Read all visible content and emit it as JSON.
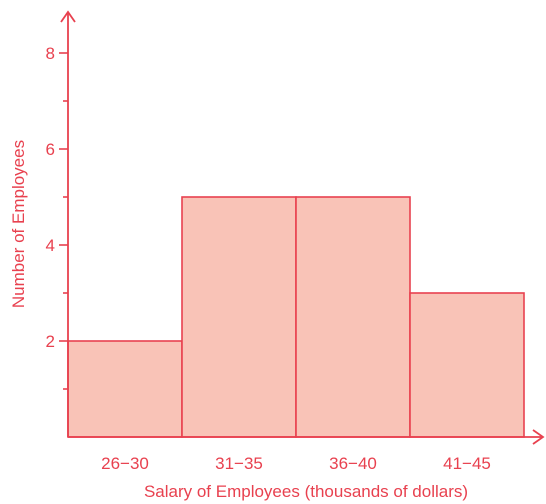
{
  "chart_data": {
    "type": "bar",
    "title": "",
    "xlabel": "Salary of Employees (thousands of dollars)",
    "ylabel": "Number of Employees",
    "categories": [
      "26−30",
      "31−35",
      "36−40",
      "41−45"
    ],
    "values": [
      2,
      5,
      5,
      3
    ],
    "ylim": [
      0,
      9
    ],
    "yticks_labeled": [
      2,
      4,
      6,
      8
    ],
    "yticks_minor": [
      1,
      3,
      5,
      7
    ],
    "grid": false,
    "legend": "none",
    "colors": {
      "bar_fill": "#f9c3b7",
      "stroke": "#e8414f",
      "text": "#e8414f"
    }
  }
}
